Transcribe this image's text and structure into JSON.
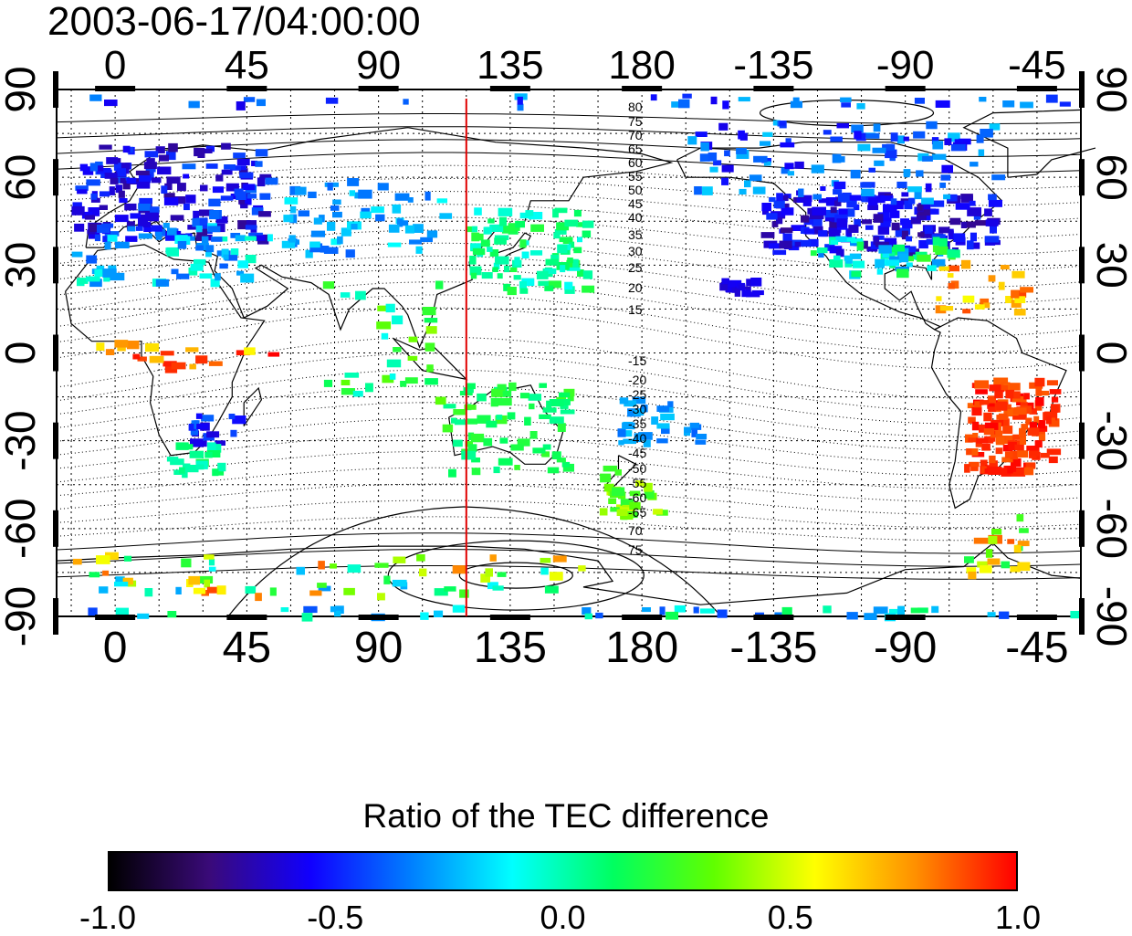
{
  "map": {
    "title": "2003-06-17/04:00:00",
    "lon_ticks_top": [
      "0",
      "45",
      "90",
      "135",
      "180",
      "-135",
      "-90",
      "-45"
    ],
    "lon_ticks_bottom": [
      "0",
      "45",
      "90",
      "135",
      "180",
      "-135",
      "-90",
      "-45"
    ],
    "lat_ticks_left": [
      "90",
      "60",
      "30",
      "0",
      "-30",
      "-60",
      "-90"
    ],
    "lat_ticks_right": [
      "90",
      "60",
      "30",
      "0",
      "-30",
      "-60",
      "-90"
    ],
    "lon_range": [
      -20,
      330
    ],
    "lat_range": [
      -90,
      90
    ],
    "meridian_marker_longitude": 120,
    "meridian_marker_color": "#e00000",
    "contour_labels_north": [
      "80",
      "75",
      "70",
      "65",
      "60",
      "55",
      "50",
      "45",
      "40",
      "35",
      "30",
      "25",
      "20",
      "15"
    ],
    "contour_labels_south": [
      "-15",
      "-20",
      "-25",
      "-30",
      "-35",
      "-40",
      "-45",
      "-50",
      "-55",
      "-60",
      "-65",
      "70",
      "75"
    ]
  },
  "colorbar": {
    "title": "Ratio of the TEC difference",
    "range": [
      -1.0,
      1.0
    ],
    "labels": [
      "-1.0",
      "-0.5",
      "0.0",
      "0.5",
      "1.0"
    ],
    "colors": [
      "#000000",
      "#3a0a7a",
      "#1000ff",
      "#0080ff",
      "#00ffff",
      "#00ff60",
      "#60ff00",
      "#ffff00",
      "#ff9000",
      "#ff0000"
    ]
  }
}
